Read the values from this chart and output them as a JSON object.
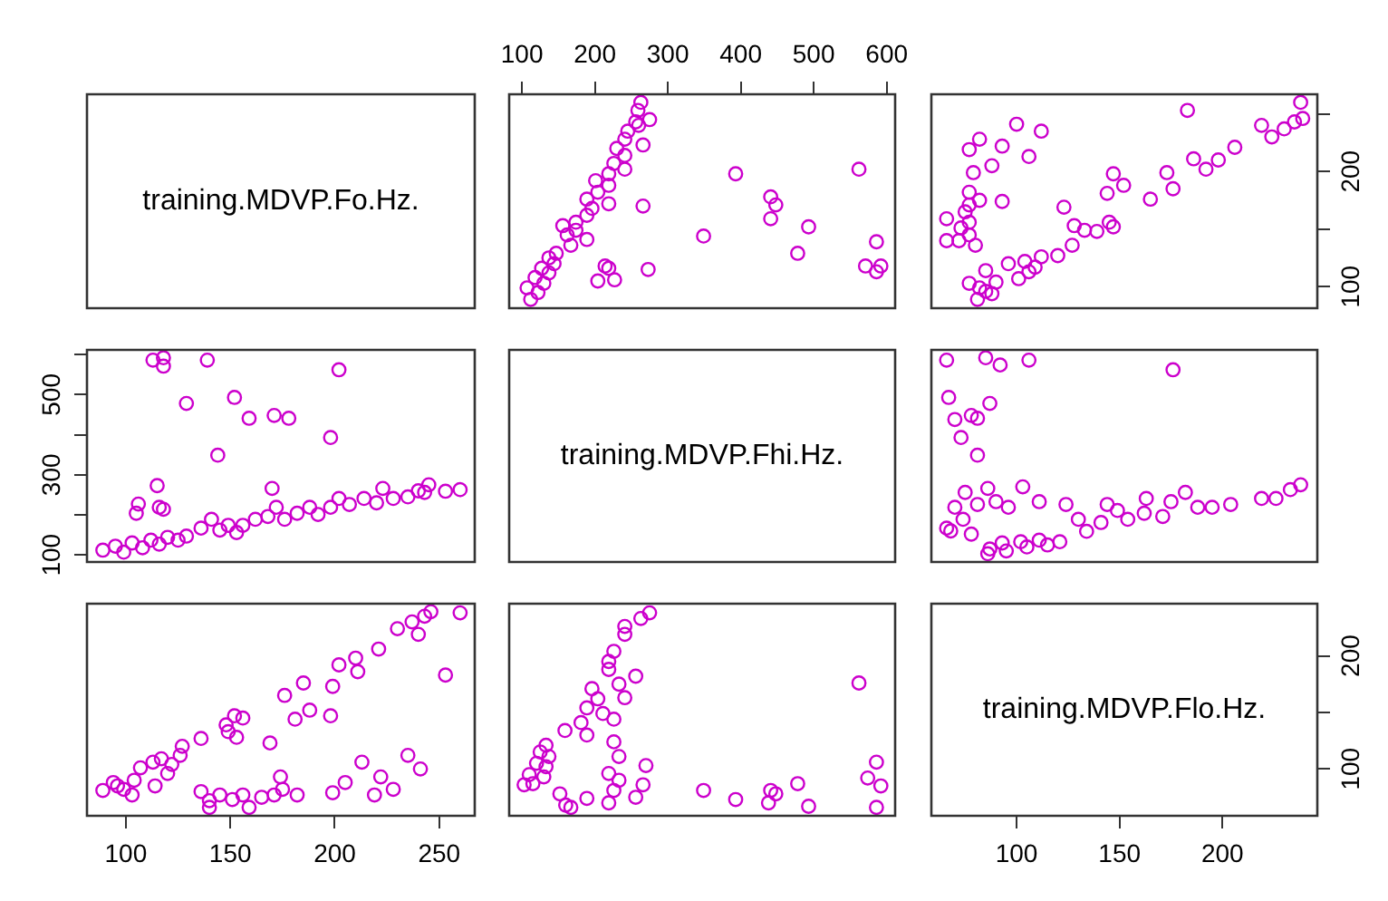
{
  "chart_data": [
    {
      "type": "other",
      "title": "training.MDVP.Fo.Hz."
    },
    {
      "type": "scatter",
      "xlim": [
        82.5,
        611.6
      ],
      "xticks": [
        100,
        200,
        300,
        400,
        500,
        600
      ],
      "ylim": [
        81.4,
        267
      ],
      "tick_labels": "x",
      "marker": "circle",
      "series": [
        {
          "color": "#cc00cc",
          "x": [
            586,
            592,
            571,
            586,
            478,
            493,
            441,
            448,
            441,
            562,
            393,
            349,
            273,
            214,
            204,
            266,
            266,
            275,
            259,
            263,
            112,
            122,
            107,
            130,
            118,
            137,
            127,
            144,
            137,
            147,
            167,
            189,
            162,
            174,
            156,
            174,
            189,
            196,
            219,
            189,
            204,
            219,
            201,
            219,
            241,
            226,
            241,
            230,
            241,
            245,
            260,
            256,
            227,
            219
          ],
          "values": [
            113,
            118,
            118,
            139,
            129,
            152,
            159,
            171,
            178,
            202,
            198,
            144,
            115,
            118,
            105,
            170,
            223,
            245,
            253,
            260,
            89,
            95,
            99,
            103,
            108,
            112,
            116,
            120,
            125,
            129,
            136,
            141,
            145,
            149,
            153,
            156,
            162,
            168,
            172,
            176,
            182,
            188,
            192,
            198,
            202,
            207,
            214,
            220,
            228,
            235,
            240,
            243,
            106,
            116
          ]
        }
      ]
    },
    {
      "type": "scatter",
      "xlim": [
        58.6,
        246.1
      ],
      "ylim": [
        81.4,
        267
      ],
      "yticks": [
        100,
        {
          "value": 150,
          "label": null
        },
        200,
        {
          "value": 250,
          "label": null
        }
      ],
      "tick_labels": "y",
      "marker": "circle",
      "series": [
        {
          "color": "#cc00cc",
          "x": [
            81,
            88,
            82,
            77,
            85,
            90,
            101,
            106,
            109,
            104,
            112,
            120,
            96,
            85,
            127,
            139,
            147,
            145,
            128,
            133,
            80,
            72,
            66,
            77,
            73,
            77,
            66,
            75,
            77,
            82,
            77,
            93,
            79,
            88,
            106,
            77,
            93,
            82,
            112,
            100,
            123,
            165,
            144,
            176,
            152,
            147,
            173,
            192,
            198,
            186,
            206,
            224,
            230,
            235,
            239,
            219,
            238,
            183
          ],
          "values": [
            89,
            94,
            99,
            103,
            96,
            104,
            107,
            113,
            117,
            122,
            126,
            127,
            120,
            114,
            136,
            148,
            152,
            156,
            153,
            149,
            136,
            140,
            140,
            145,
            151,
            156,
            159,
            165,
            171,
            175,
            182,
            174,
            199,
            205,
            213,
            219,
            222,
            228,
            235,
            241,
            169,
            176,
            181,
            185,
            188,
            198,
            199,
            202,
            210,
            211,
            221,
            230,
            237,
            243,
            246,
            240,
            260,
            253
          ]
        }
      ]
    },
    {
      "type": "scatter",
      "xlim": [
        81.4,
        267
      ],
      "ylim": [
        82.5,
        611.6
      ],
      "yticks": [
        100,
        {
          "value": 200,
          "label": null
        },
        300,
        {
          "value": 400,
          "label": null
        },
        500,
        {
          "value": 600,
          "label": null
        }
      ],
      "tick_labels": "y",
      "marker": "circle",
      "series": [
        {
          "color": "#cc00cc",
          "x": [
            113,
            118,
            118,
            139,
            129,
            152,
            159,
            171,
            178,
            202,
            198,
            144,
            115,
            118,
            105,
            170,
            223,
            245,
            253,
            260,
            89,
            95,
            99,
            103,
            108,
            112,
            116,
            120,
            125,
            129,
            136,
            141,
            145,
            149,
            153,
            156,
            162,
            168,
            172,
            176,
            182,
            188,
            192,
            198,
            202,
            207,
            214,
            220,
            228,
            235,
            240,
            243,
            106,
            116
          ],
          "values": [
            586,
            592,
            571,
            586,
            478,
            493,
            441,
            448,
            441,
            562,
            393,
            349,
            273,
            214,
            204,
            266,
            266,
            275,
            259,
            263,
            112,
            122,
            107,
            130,
            118,
            137,
            127,
            144,
            137,
            147,
            167,
            189,
            162,
            174,
            156,
            174,
            189,
            196,
            219,
            189,
            204,
            219,
            201,
            219,
            241,
            226,
            241,
            230,
            241,
            245,
            260,
            256,
            227,
            219
          ]
        }
      ]
    },
    {
      "type": "other",
      "title": "training.MDVP.Fhi.Hz."
    },
    {
      "type": "scatter",
      "xlim": [
        58.6,
        246.1
      ],
      "ylim": [
        82.5,
        611.6
      ],
      "tick_labels": false,
      "marker": "circle",
      "series": [
        {
          "color": "#cc00cc",
          "x": [
            66,
            85,
            92,
            106,
            176,
            67,
            70,
            78,
            81,
            87,
            73,
            81,
            66,
            70,
            75,
            86,
            74,
            81,
            90,
            96,
            103,
            111,
            78,
            87,
            93,
            102,
            111,
            121,
            86,
            124,
            130,
            134,
            141,
            144,
            149,
            154,
            162,
            163,
            171,
            175,
            182,
            188,
            195,
            204,
            219,
            226,
            233,
            238,
            95,
            105,
            115,
            68
          ],
          "values": [
            586,
            592,
            574,
            586,
            562,
            493,
            438,
            448,
            441,
            478,
            393,
            349,
            167,
            219,
            256,
            266,
            189,
            226,
            233,
            219,
            270,
            233,
            152,
            115,
            130,
            133,
            137,
            133,
            103,
            226,
            189,
            159,
            181,
            226,
            211,
            189,
            204,
            241,
            196,
            233,
            256,
            219,
            219,
            226,
            241,
            241,
            263,
            275,
            110,
            120,
            125,
            160
          ]
        }
      ]
    },
    {
      "type": "scatter",
      "xlim": [
        81.4,
        267
      ],
      "xticks": [
        100,
        150,
        200,
        250
      ],
      "ylim": [
        58.6,
        246.1
      ],
      "tick_labels": "x",
      "marker": "circle",
      "series": [
        {
          "color": "#cc00cc",
          "x": [
            89,
            94,
            99,
            103,
            96,
            104,
            107,
            113,
            117,
            122,
            126,
            127,
            120,
            114,
            136,
            148,
            152,
            156,
            153,
            149,
            136,
            140,
            140,
            145,
            151,
            156,
            159,
            165,
            171,
            175,
            182,
            174,
            199,
            205,
            213,
            219,
            222,
            228,
            235,
            241,
            169,
            176,
            181,
            185,
            188,
            198,
            199,
            202,
            210,
            211,
            221,
            230,
            237,
            243,
            246,
            240,
            260,
            253
          ],
          "values": [
            81,
            88,
            82,
            77,
            85,
            90,
            101,
            106,
            109,
            104,
            112,
            120,
            96,
            85,
            127,
            139,
            147,
            145,
            128,
            133,
            80,
            72,
            66,
            77,
            73,
            77,
            66,
            75,
            77,
            82,
            77,
            93,
            79,
            88,
            106,
            77,
            93,
            82,
            112,
            100,
            123,
            165,
            144,
            176,
            152,
            147,
            173,
            192,
            198,
            186,
            206,
            224,
            230,
            235,
            239,
            219,
            238,
            183
          ]
        }
      ]
    },
    {
      "type": "scatter",
      "xlim": [
        82.5,
        611.6
      ],
      "ylim": [
        58.6,
        246.1
      ],
      "tick_labels": false,
      "marker": "circle",
      "series": [
        {
          "color": "#cc00cc",
          "x": [
            586,
            592,
            574,
            586,
            562,
            493,
            438,
            448,
            441,
            478,
            393,
            349,
            167,
            219,
            256,
            266,
            189,
            226,
            233,
            219,
            270,
            233,
            152,
            115,
            130,
            133,
            137,
            133,
            103,
            226,
            189,
            159,
            181,
            226,
            211,
            189,
            204,
            241,
            196,
            233,
            256,
            219,
            219,
            226,
            241,
            241,
            263,
            275,
            110,
            120,
            125,
            160
          ],
          "values": [
            66,
            85,
            92,
            106,
            176,
            67,
            70,
            78,
            81,
            87,
            73,
            81,
            66,
            70,
            75,
            86,
            74,
            81,
            90,
            96,
            103,
            111,
            78,
            87,
            93,
            102,
            111,
            121,
            86,
            124,
            130,
            134,
            141,
            144,
            149,
            154,
            162,
            163,
            171,
            175,
            182,
            188,
            195,
            204,
            219,
            226,
            233,
            238,
            95,
            105,
            115,
            68
          ]
        }
      ]
    },
    {
      "type": "scatter",
      "title": "training.MDVP.Flo.Hz.",
      "xlim": [
        58.6,
        246.1
      ],
      "xticks": [
        100,
        150,
        200
      ],
      "ylim": [
        58.6,
        246.1
      ],
      "yticks": [
        100,
        {
          "value": 150,
          "label": null
        },
        200
      ]
    }
  ]
}
